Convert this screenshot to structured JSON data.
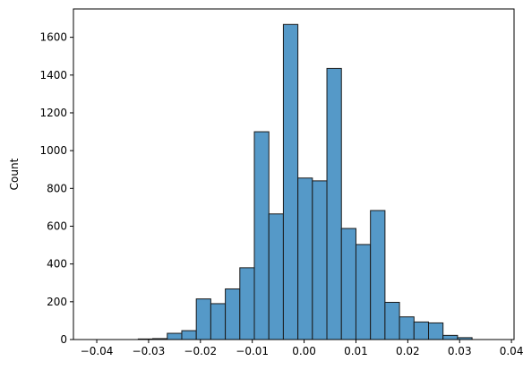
{
  "chart_data": {
    "type": "bar",
    "subtype": "histogram",
    "title": "",
    "xlabel": "",
    "ylabel": "Count",
    "xlim": [
      -0.0445,
      0.0405
    ],
    "ylim": [
      0,
      1750
    ],
    "grid": false,
    "legend": "none",
    "bar_color": "#5599c8",
    "edge_color": "#1a1a1a",
    "bins": [
      {
        "x0": -0.032,
        "x1": -0.0292,
        "count": 3
      },
      {
        "x0": -0.0292,
        "x1": -0.0264,
        "count": 5
      },
      {
        "x0": -0.0264,
        "x1": -0.0236,
        "count": 33
      },
      {
        "x0": -0.0236,
        "x1": -0.0208,
        "count": 47
      },
      {
        "x0": -0.0208,
        "x1": -0.018,
        "count": 215
      },
      {
        "x0": -0.018,
        "x1": -0.0152,
        "count": 190
      },
      {
        "x0": -0.0152,
        "x1": -0.0124,
        "count": 268
      },
      {
        "x0": -0.0124,
        "x1": -0.0096,
        "count": 380
      },
      {
        "x0": -0.0096,
        "x1": -0.0068,
        "count": 1100
      },
      {
        "x0": -0.0068,
        "x1": -0.004,
        "count": 665
      },
      {
        "x0": -0.004,
        "x1": -0.0012,
        "count": 1668
      },
      {
        "x0": -0.0012,
        "x1": 0.0016,
        "count": 855
      },
      {
        "x0": 0.0016,
        "x1": 0.0044,
        "count": 840
      },
      {
        "x0": 0.0044,
        "x1": 0.0072,
        "count": 1435
      },
      {
        "x0": 0.0072,
        "x1": 0.01,
        "count": 588
      },
      {
        "x0": 0.01,
        "x1": 0.0128,
        "count": 503
      },
      {
        "x0": 0.0128,
        "x1": 0.0156,
        "count": 683
      },
      {
        "x0": 0.0156,
        "x1": 0.0184,
        "count": 197
      },
      {
        "x0": 0.0184,
        "x1": 0.0212,
        "count": 120
      },
      {
        "x0": 0.0212,
        "x1": 0.024,
        "count": 93
      },
      {
        "x0": 0.024,
        "x1": 0.0268,
        "count": 88
      },
      {
        "x0": 0.0268,
        "x1": 0.0296,
        "count": 22
      },
      {
        "x0": 0.0296,
        "x1": 0.0324,
        "count": 10
      }
    ],
    "x_ticks": [
      {
        "value": -0.04,
        "label": "−0.04"
      },
      {
        "value": -0.03,
        "label": "−0.03"
      },
      {
        "value": -0.02,
        "label": "−0.02"
      },
      {
        "value": -0.01,
        "label": "−0.01"
      },
      {
        "value": 0.0,
        "label": "0.00"
      },
      {
        "value": 0.01,
        "label": "0.01"
      },
      {
        "value": 0.02,
        "label": "0.02"
      },
      {
        "value": 0.03,
        "label": "0.03"
      },
      {
        "value": 0.04,
        "label": "0.04"
      }
    ],
    "y_ticks": [
      {
        "value": 0,
        "label": "0"
      },
      {
        "value": 200,
        "label": "200"
      },
      {
        "value": 400,
        "label": "400"
      },
      {
        "value": 600,
        "label": "600"
      },
      {
        "value": 800,
        "label": "800"
      },
      {
        "value": 1000,
        "label": "1000"
      },
      {
        "value": 1200,
        "label": "1200"
      },
      {
        "value": 1400,
        "label": "1400"
      },
      {
        "value": 1600,
        "label": "1600"
      }
    ]
  }
}
